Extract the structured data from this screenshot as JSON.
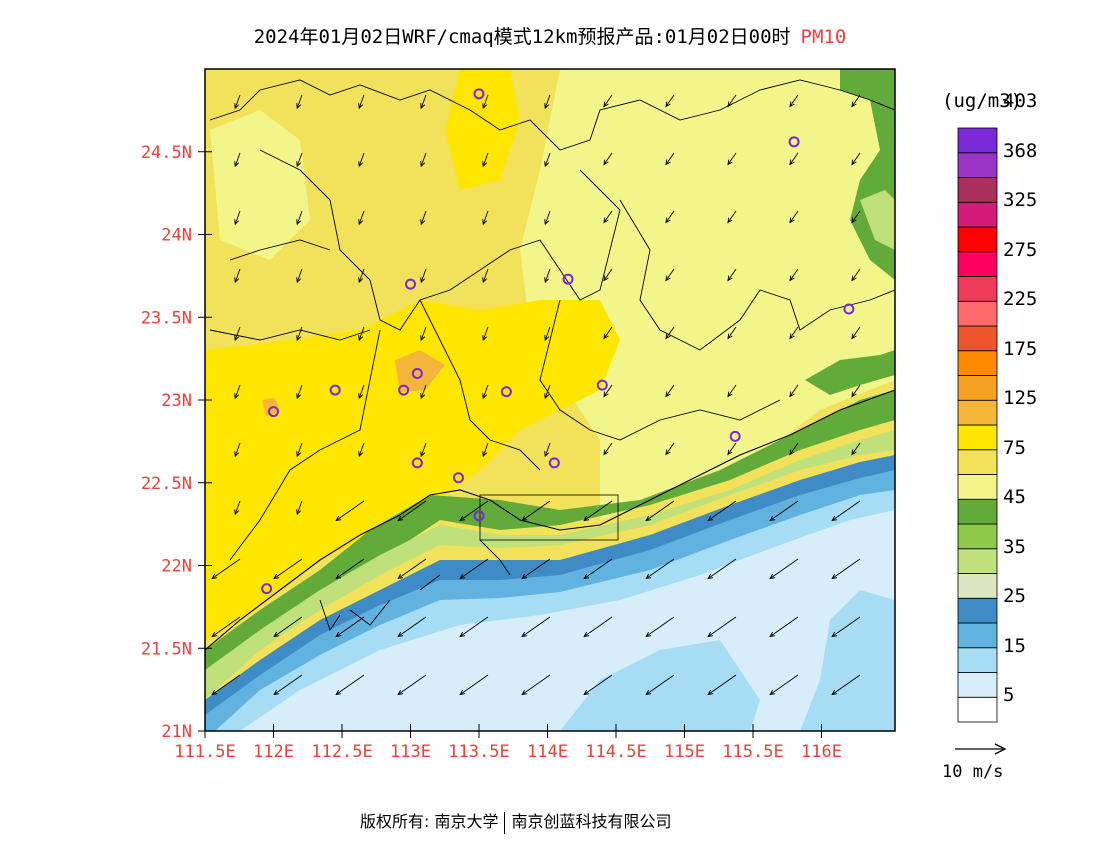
{
  "title": {
    "main": "2024年01月02日WRF/cmaq模式12km预报产品:01月02日00时",
    "variable": "PM10"
  },
  "axes": {
    "y_ticks": [
      "24.5N",
      "24N",
      "23.5N",
      "23N",
      "22.5N",
      "22N",
      "21.5N",
      "21N"
    ],
    "x_ticks": [
      "111.5E",
      "112E",
      "112.5E",
      "113E",
      "113.5E",
      "114E",
      "114.5E",
      "115E",
      "115.5E",
      "116E"
    ],
    "tick_color": "#e8413b"
  },
  "legend": {
    "unit": "(ug/m3)",
    "colors": [
      "#ffffff",
      "#d7eefa",
      "#a6dcf4",
      "#62b2e0",
      "#3f8bc6",
      "#dde6c0",
      "#bfe07a",
      "#8fc94a",
      "#62aa3a",
      "#f2f58a",
      "#f2e15a",
      "#ffe600",
      "#f5b53a",
      "#f5a020",
      "#ff8a00",
      "#f0562e",
      "#ff6a6a",
      "#f03a5a",
      "#ff0060",
      "#ff0000",
      "#d21a7a",
      "#a8305a",
      "#9a35c8",
      "#7a28d8"
    ],
    "labels": [
      "5",
      "15",
      "25",
      "35",
      "45",
      "75",
      "125",
      "175",
      "225",
      "275",
      "325",
      "368",
      "403"
    ]
  },
  "reference_vector": {
    "label": "10 m/s"
  },
  "stations": [
    {
      "lon": 113.5,
      "lat": 24.85
    },
    {
      "lon": 115.8,
      "lat": 24.56
    },
    {
      "lon": 113.0,
      "lat": 23.7
    },
    {
      "lon": 114.15,
      "lat": 23.73
    },
    {
      "lon": 116.2,
      "lat": 23.55
    },
    {
      "lon": 113.05,
      "lat": 23.16
    },
    {
      "lon": 112.45,
      "lat": 23.06
    },
    {
      "lon": 112.95,
      "lat": 23.06
    },
    {
      "lon": 113.7,
      "lat": 23.05
    },
    {
      "lon": 114.4,
      "lat": 23.09
    },
    {
      "lon": 112.0,
      "lat": 22.93
    },
    {
      "lon": 115.37,
      "lat": 22.78
    },
    {
      "lon": 113.05,
      "lat": 22.62
    },
    {
      "lon": 113.35,
      "lat": 22.53
    },
    {
      "lon": 114.05,
      "lat": 22.62
    },
    {
      "lon": 113.5,
      "lat": 22.3
    },
    {
      "lon": 111.95,
      "lat": 21.86
    }
  ],
  "footer": {
    "left": "版权所有: 南京大学",
    "right": "南京创蓝科技有限公司"
  }
}
